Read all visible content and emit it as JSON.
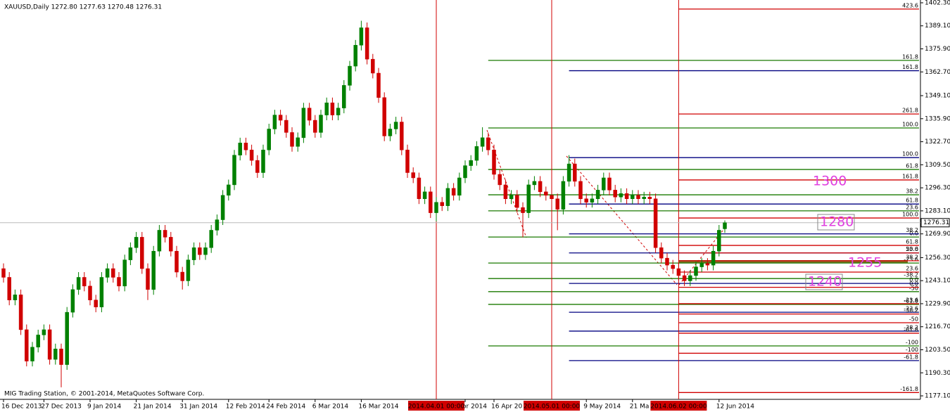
{
  "chart_data": {
    "type": "candlestick",
    "header": "XAUUSD,Daily  1272.80 1277.63 1270.48 1276.31",
    "footer": "MIG Trading Station, © 2001-2014, MetaQuotes Software Corp.",
    "up_color": "#008000",
    "down_color": "#d00000",
    "ylim": [
      1175.1,
      1403.9
    ],
    "yticks": [
      {
        "value": 1402.3,
        "label": "1402.30"
      },
      {
        "value": 1389.1,
        "label": "1389.10"
      },
      {
        "value": 1375.9,
        "label": "1375.90"
      },
      {
        "value": 1362.7,
        "label": "1362.70"
      },
      {
        "value": 1349.1,
        "label": "1349.10"
      },
      {
        "value": 1335.9,
        "label": "1335.90"
      },
      {
        "value": 1322.7,
        "label": "1322.70"
      },
      {
        "value": 1309.5,
        "label": "1309.50"
      },
      {
        "value": 1296.3,
        "label": "1296.30"
      },
      {
        "value": 1283.1,
        "label": "1283.10"
      },
      {
        "value": 1269.9,
        "label": "1269.90"
      },
      {
        "value": 1256.3,
        "label": "1256.30"
      },
      {
        "value": 1243.1,
        "label": "1243.10"
      },
      {
        "value": 1229.9,
        "label": "1229.90"
      },
      {
        "value": 1216.7,
        "label": "1216.70"
      },
      {
        "value": 1203.5,
        "label": "1203.50"
      },
      {
        "value": 1190.3,
        "label": "1190.30"
      },
      {
        "value": 1177.1,
        "label": "1177.10"
      }
    ],
    "categories": [
      "16 Dec 2013",
      null,
      null,
      null,
      null,
      null,
      null,
      "27 Dec 2013",
      null,
      null,
      null,
      null,
      null,
      null,
      null,
      "9 Jan 2014",
      null,
      null,
      null,
      null,
      null,
      null,
      null,
      "21 Jan 2014",
      null,
      null,
      null,
      null,
      null,
      null,
      null,
      "31 Jan 2014",
      null,
      null,
      null,
      null,
      null,
      null,
      null,
      "12 Feb 2014",
      null,
      null,
      null,
      null,
      null,
      null,
      "24 Feb 2014",
      null,
      null,
      null,
      null,
      null,
      null,
      null,
      "6 Mar 2014",
      null,
      null,
      null,
      null,
      null,
      null,
      null,
      "16 Mar 2014",
      null,
      null,
      null,
      null,
      null,
      null,
      null,
      null,
      null,
      null,
      null,
      null,
      null,
      null,
      null,
      null,
      null,
      "or 2014",
      null,
      null,
      null,
      null,
      "16 Apr 20",
      null,
      null,
      null,
      null,
      null,
      null,
      null,
      null,
      null,
      null,
      null,
      null,
      null,
      null,
      null,
      "9 May 2014",
      null,
      null,
      null,
      null,
      null,
      null,
      null,
      "21 Ma",
      null,
      null,
      null,
      null,
      null,
      null,
      null,
      null,
      null,
      null,
      null,
      null,
      null,
      null,
      "12 Jun 2014",
      null
    ],
    "open": [
      1250,
      1245,
      1232,
      1235,
      1215,
      1197,
      1205,
      1212,
      1215,
      1198,
      1204,
      1195,
      1225,
      1238,
      1245,
      1240,
      1232,
      1228,
      1245,
      1250,
      1245,
      1240,
      1255,
      1262,
      1268,
      1250,
      1238,
      1260,
      1272,
      1268,
      1260,
      1248,
      1243,
      1255,
      1262,
      1258,
      1262,
      1272,
      1278,
      1292,
      1298,
      1315,
      1322,
      1318,
      1312,
      1305,
      1318,
      1330,
      1338,
      1335,
      1328,
      1320,
      1325,
      1342,
      1335,
      1328,
      1338,
      1345,
      1338,
      1342,
      1355,
      1366,
      1378,
      1388,
      1370,
      1362,
      1348,
      1326,
      1330,
      1334,
      1318,
      1305,
      1302,
      1290,
      1294,
      1282,
      1288,
      1286,
      1296,
      1292,
      1302,
      1309,
      1312,
      1320,
      1325,
      1318,
      1304,
      1298,
      1290,
      1292,
      1285,
      1282,
      1298,
      1300,
      1294,
      1292,
      1290,
      1284,
      1300,
      1310,
      1300,
      1290,
      1288,
      1290,
      1295,
      1302,
      1295,
      1291,
      1293,
      1290,
      1292,
      1290,
      1291,
      1290,
      1262,
      1256,
      1252,
      1250,
      1246,
      1243,
      1246,
      1251,
      1253,
      1252,
      1260,
      1272.8
    ],
    "high": [
      1253,
      1248,
      1238,
      1238,
      1218,
      1208,
      1215,
      1218,
      1218,
      1207,
      1207,
      1228,
      1241,
      1248,
      1248,
      1243,
      1235,
      1248,
      1253,
      1253,
      1248,
      1258,
      1265,
      1271,
      1271,
      1253,
      1263,
      1275,
      1275,
      1271,
      1263,
      1251,
      1258,
      1265,
      1265,
      1265,
      1275,
      1281,
      1295,
      1301,
      1318,
      1325,
      1325,
      1321,
      1315,
      1321,
      1333,
      1341,
      1341,
      1338,
      1331,
      1328,
      1345,
      1345,
      1338,
      1341,
      1348,
      1348,
      1345,
      1358,
      1369,
      1381,
      1392,
      1391,
      1373,
      1365,
      1351,
      1333,
      1337,
      1337,
      1321,
      1308,
      1305,
      1297,
      1297,
      1291,
      1291,
      1299,
      1299,
      1305,
      1312,
      1315,
      1323,
      1331,
      1328,
      1321,
      1307,
      1301,
      1295,
      1295,
      1288,
      1301,
      1303,
      1303,
      1297,
      1295,
      1293,
      1303,
      1315,
      1313,
      1303,
      1293,
      1293,
      1298,
      1305,
      1305,
      1298,
      1296,
      1296,
      1295,
      1295,
      1294,
      1294,
      1293,
      1265,
      1259,
      1255,
      1253,
      1249,
      1249,
      1254,
      1256,
      1256,
      1263,
      1275,
      1277.63
    ],
    "low": [
      1242,
      1229,
      1229,
      1212,
      1194,
      1194,
      1202,
      1209,
      1195,
      1195,
      1182,
      1192,
      1222,
      1235,
      1237,
      1229,
      1225,
      1225,
      1242,
      1242,
      1237,
      1237,
      1252,
      1259,
      1247,
      1232,
      1235,
      1257,
      1265,
      1257,
      1245,
      1238,
      1240,
      1252,
      1255,
      1255,
      1259,
      1269,
      1275,
      1289,
      1295,
      1312,
      1315,
      1309,
      1302,
      1302,
      1315,
      1327,
      1332,
      1325,
      1317,
      1317,
      1322,
      1332,
      1325,
      1325,
      1335,
      1335,
      1335,
      1339,
      1352,
      1363,
      1375,
      1367,
      1359,
      1345,
      1323,
      1323,
      1327,
      1315,
      1302,
      1299,
      1287,
      1287,
      1279,
      1277,
      1283,
      1283,
      1289,
      1289,
      1299,
      1306,
      1309,
      1317,
      1315,
      1301,
      1295,
      1287,
      1287,
      1282,
      1268,
      1279,
      1295,
      1291,
      1289,
      1287,
      1272,
      1281,
      1297,
      1297,
      1287,
      1285,
      1285,
      1287,
      1292,
      1292,
      1288,
      1288,
      1287,
      1287,
      1287,
      1287,
      1287,
      1259,
      1253,
      1249,
      1247,
      1243,
      1240,
      1240,
      1243,
      1248,
      1249,
      1249,
      1257,
      1270.48
    ],
    "close": [
      1245,
      1232,
      1235,
      1215,
      1197,
      1205,
      1212,
      1215,
      1198,
      1204,
      1195,
      1225,
      1238,
      1245,
      1240,
      1232,
      1228,
      1245,
      1250,
      1245,
      1240,
      1255,
      1262,
      1268,
      1250,
      1238,
      1260,
      1272,
      1268,
      1260,
      1248,
      1243,
      1255,
      1262,
      1258,
      1262,
      1272,
      1278,
      1292,
      1298,
      1315,
      1322,
      1318,
      1312,
      1305,
      1318,
      1330,
      1338,
      1335,
      1328,
      1320,
      1325,
      1342,
      1335,
      1328,
      1338,
      1345,
      1338,
      1342,
      1355,
      1366,
      1378,
      1388,
      1370,
      1362,
      1348,
      1326,
      1330,
      1334,
      1318,
      1305,
      1302,
      1290,
      1294,
      1282,
      1288,
      1286,
      1296,
      1292,
      1302,
      1309,
      1312,
      1320,
      1325,
      1318,
      1304,
      1298,
      1290,
      1292,
      1285,
      1282,
      1298,
      1300,
      1294,
      1292,
      1290,
      1284,
      1300,
      1310,
      1300,
      1290,
      1288,
      1290,
      1295,
      1302,
      1295,
      1291,
      1293,
      1290,
      1292,
      1290,
      1291,
      1290,
      1262,
      1256,
      1252,
      1250,
      1246,
      1243,
      1246,
      1251,
      1253,
      1252,
      1260,
      1272,
      1276.31
    ],
    "markers": [
      {
        "index": 75,
        "label": "2014.04.01 00:00"
      },
      {
        "index": 95,
        "label": "2014.05.01 00:00"
      },
      {
        "index": 117,
        "label": "2014.06.02 00:00"
      }
    ],
    "fib_groups": [
      {
        "color": "#1a7a00",
        "from": 84,
        "levels": [
          {
            "price": 1369.3,
            "label": "161.8"
          },
          {
            "price": 1330.6,
            "label": "100.0"
          },
          {
            "price": 1306.8,
            "label": "61.8"
          },
          {
            "price": 1292.3,
            "label": "38.2"
          },
          {
            "price": 1283.1,
            "label": "23.6"
          },
          {
            "price": 1268.1,
            "label": "0.0"
          },
          {
            "price": 1253.2,
            "label": "-23.6"
          },
          {
            "price": 1244.3,
            "label": "-38.2"
          },
          {
            "price": 1236.8,
            "label": "-50"
          },
          {
            "price": 1229.5,
            "label": "-61.8"
          },
          {
            "price": 1205.7,
            "label": "-100"
          }
        ]
      },
      {
        "color": "#000080",
        "from": 98,
        "levels": [
          {
            "price": 1363.4,
            "label": "161.8"
          },
          {
            "price": 1313.6,
            "label": "100.0"
          },
          {
            "price": 1287.0,
            "label": "61.8"
          },
          {
            "price": 1269.9,
            "label": "38.2"
          },
          {
            "price": 1259.0,
            "label": "23.6"
          },
          {
            "price": 1241.5,
            "label": "0.0"
          },
          {
            "price": 1225.0,
            "label": "-23.6"
          },
          {
            "price": 1214.2,
            "label": "-38.2"
          },
          {
            "price": 1197.3,
            "label": "-61.8"
          }
        ]
      },
      {
        "color": "#d00000",
        "from": 117,
        "levels": [
          {
            "price": 1398.7,
            "label": "423.6"
          },
          {
            "price": 1338.6,
            "label": "261.8"
          },
          {
            "price": 1300.8,
            "label": "161.8"
          },
          {
            "price": 1279.0,
            "label": "100.0"
          },
          {
            "price": 1263.3,
            "label": "61.8"
          },
          {
            "price": 1259.0,
            "label": "50.0"
          },
          {
            "price": 1254.5,
            "label": "38.2"
          },
          {
            "price": 1248.0,
            "label": "23.6"
          },
          {
            "price": 1239.3,
            "label": "0.0"
          },
          {
            "price": 1229.9,
            "label": "-23.6"
          },
          {
            "price": 1224.0,
            "label": "-38.2"
          },
          {
            "price": 1219.0,
            "label": "-50"
          },
          {
            "price": 1213.0,
            "label": "-61.8"
          },
          {
            "price": 1201.5,
            "label": "-100"
          },
          {
            "price": 1179.0,
            "label": "-161.8"
          }
        ]
      }
    ],
    "annotations": [
      "1300",
      "1280",
      "1255",
      "1240"
    ]
  }
}
